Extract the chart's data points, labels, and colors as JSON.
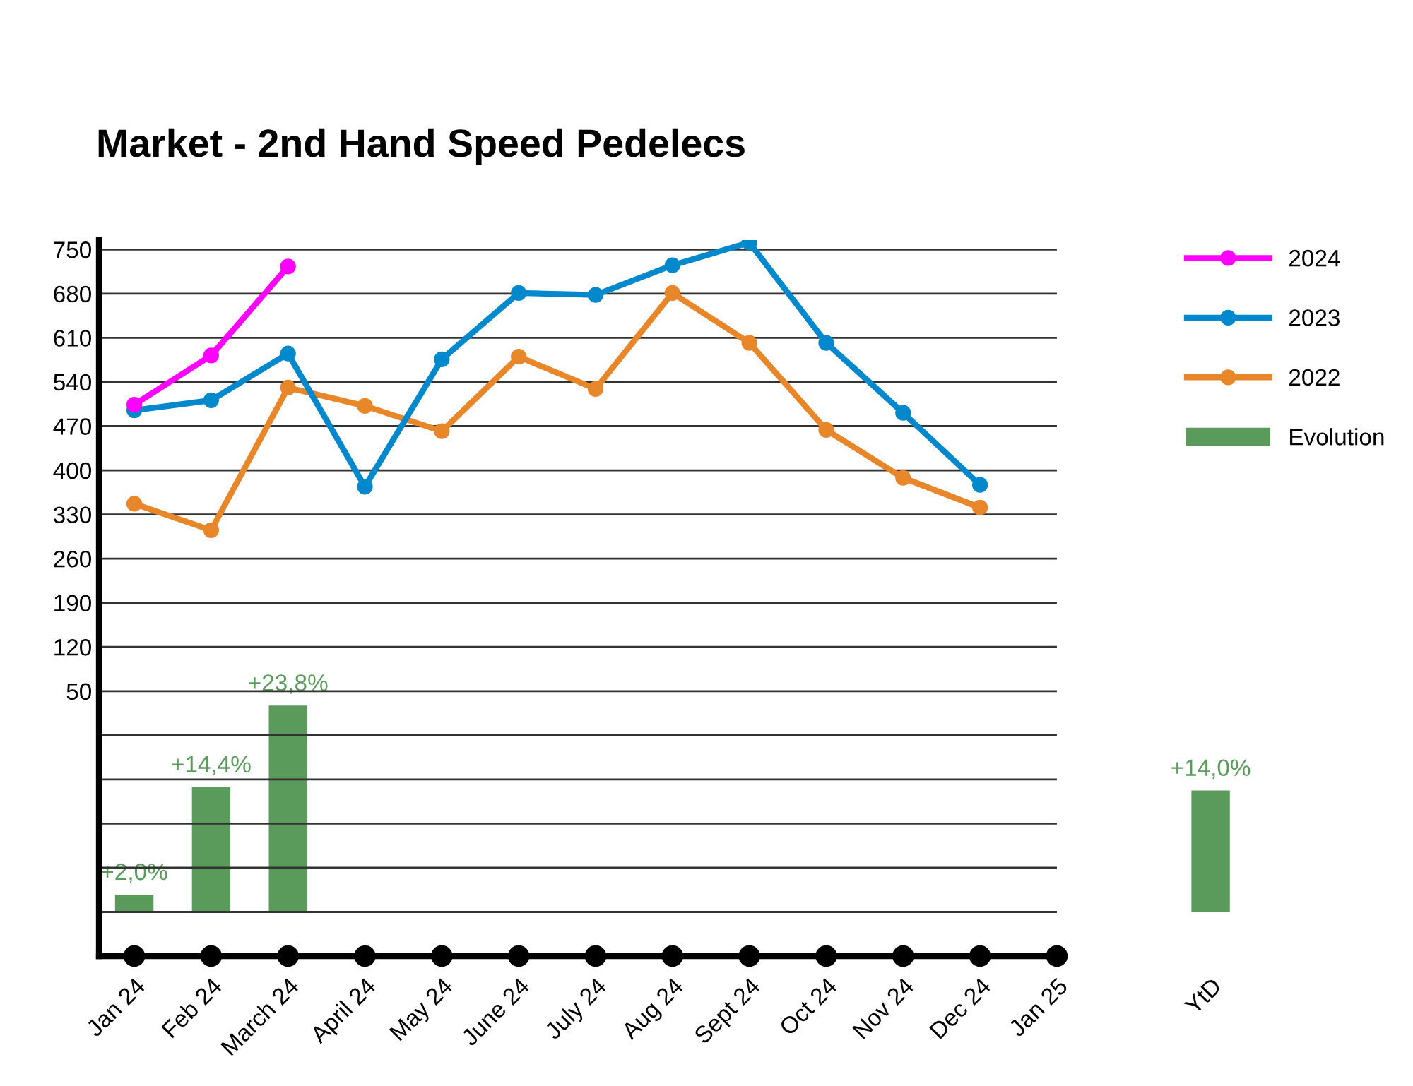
{
  "chart_data": {
    "type": "line",
    "title": "Market - 2nd Hand Speed Pedelecs",
    "categories": [
      "Jan 24",
      "Feb 24",
      "March 24",
      "April 24",
      "May 24",
      "June 24",
      "July 24",
      "Aug 24",
      "Sept 24",
      "Oct 24",
      "Nov 24",
      "Dec 24",
      "Jan 25",
      null,
      "YtD"
    ],
    "series": [
      {
        "name": "2024",
        "color": "#ff00ff",
        "values": [
          504,
          582,
          723,
          null,
          null,
          null,
          null,
          null,
          null,
          null,
          null,
          null,
          null,
          null,
          null
        ]
      },
      {
        "name": "2023",
        "color": "#0088cc",
        "values": [
          495,
          511,
          585,
          374,
          576,
          681,
          678,
          725,
          761,
          602,
          491,
          377,
          null,
          null,
          null
        ]
      },
      {
        "name": "2022",
        "color": "#e8862a",
        "values": [
          347,
          305,
          531,
          502,
          462,
          580,
          529,
          681,
          602,
          464,
          388,
          341,
          null,
          null,
          null
        ]
      },
      {
        "name": "Evolution",
        "type": "bar",
        "axis": "y2",
        "color": "#5a9a5a",
        "colors": [
          "#5a9a5a",
          "#5a9a5a",
          "#5a9a5a",
          null,
          null,
          null,
          null,
          null,
          null,
          null,
          null,
          null,
          null,
          null,
          "#5a9a5a"
        ],
        "values": [
          2.0,
          14.4,
          23.8,
          null,
          null,
          null,
          null,
          null,
          null,
          null,
          null,
          null,
          null,
          null,
          14.0
        ],
        "value_labels": [
          "+2,0%",
          "+14,4%",
          "+23,8%",
          null,
          null,
          null,
          null,
          null,
          null,
          null,
          null,
          null,
          null,
          null,
          "+14,0%"
        ]
      }
    ],
    "ylim": [
      -370,
      765
    ],
    "yticks": [
      {
        "value": -370,
        "label": null
      },
      {
        "value": -300,
        "label": null
      },
      {
        "value": -230,
        "label": null
      },
      {
        "value": -160,
        "label": null
      },
      {
        "value": -90,
        "label": null
      },
      {
        "value": -20,
        "label": null
      },
      50,
      120,
      190,
      260,
      330,
      400,
      470,
      540,
      610,
      680,
      750
    ],
    "y2lim": [
      -5.1,
      77.5
    ],
    "grid": "y",
    "legend": "right",
    "marker": "circle",
    "line_style": "solid"
  }
}
